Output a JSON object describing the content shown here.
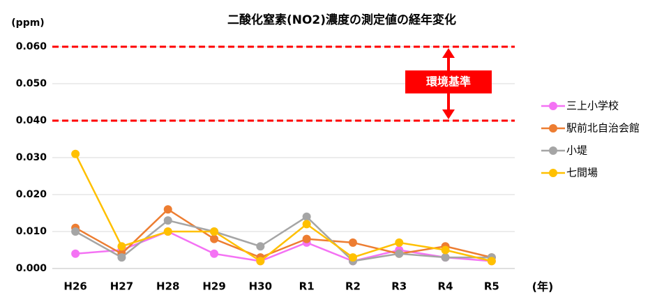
{
  "chart_data": {
    "type": "line",
    "title": "二酸化窒素(NO2)濃度の測定値の経年変化",
    "y_axis_label": "(ppm)",
    "x_axis_label": "(年)",
    "categories": [
      "H26",
      "H27",
      "H28",
      "H29",
      "H30",
      "R1",
      "R2",
      "R3",
      "R4",
      "R5"
    ],
    "series": [
      {
        "name": "三上小学校",
        "color": "#f472f4",
        "values": [
          0.004,
          0.005,
          0.01,
          0.004,
          0.002,
          0.007,
          0.002,
          0.005,
          0.003,
          0.002
        ]
      },
      {
        "name": "駅前北自治会館",
        "color": "#ed7d31",
        "values": [
          0.011,
          0.004,
          0.016,
          0.008,
          0.003,
          0.008,
          0.007,
          0.004,
          0.006,
          0.003
        ]
      },
      {
        "name": "小堤",
        "color": "#a5a5a5",
        "values": [
          0.01,
          0.003,
          0.013,
          0.01,
          0.006,
          0.014,
          0.002,
          0.004,
          0.003,
          0.003
        ]
      },
      {
        "name": "七間場",
        "color": "#ffc000",
        "values": [
          0.031,
          0.006,
          0.01,
          0.01,
          0.002,
          0.012,
          0.003,
          0.007,
          0.005,
          0.002
        ]
      }
    ],
    "ylim": [
      0,
      0.06
    ],
    "yticks": [
      {
        "value": 0,
        "label": "0.000"
      },
      {
        "value": 0.01,
        "label": "0.010"
      },
      {
        "value": 0.02,
        "label": "0.020"
      },
      {
        "value": 0.03,
        "label": "0.030"
      },
      {
        "value": 0.04,
        "label": "0.040"
      },
      {
        "value": 0.05,
        "label": "0.050"
      },
      {
        "value": 0.06,
        "label": "0.060"
      }
    ],
    "grid": true,
    "legend": "right",
    "reference_lines": [
      {
        "value": 0.06
      },
      {
        "value": 0.04
      }
    ],
    "reference_color": "#ff0000",
    "annotation": "環境基準"
  }
}
